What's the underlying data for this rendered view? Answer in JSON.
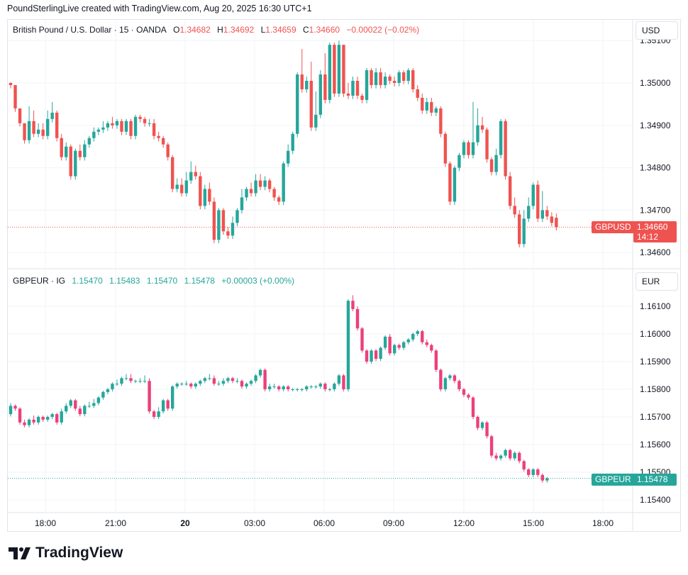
{
  "header": {
    "text": "PoundSterlingLive created with TradingView.com, Aug 20, 2025 16:30 UTC+1"
  },
  "panes": {
    "top": {
      "name": "British Pound / U.S. Dollar · 15 · OANDA",
      "o_label": "O",
      "o": "1.34682",
      "h_label": "H",
      "h": "1.34692",
      "l_label": "L",
      "l": "1.34659",
      "c_label": "C",
      "c": "1.34660",
      "change": "−0.00022 (−0.02%)",
      "currency": "USD",
      "symbol_tag": "GBPUSD",
      "price_tag": "1.34660",
      "countdown": "14:12",
      "tag_color": "#ef5350"
    },
    "bottom": {
      "name": "GBPEUR · IG",
      "o": "1.15470",
      "h": "1.15483",
      "l": "1.15470",
      "c": "1.15478",
      "change": "+0.00003 (+0.00%)",
      "currency": "EUR",
      "symbol_tag": "GBPEUR",
      "price_tag": "1.15478",
      "tag_color": "#26a69a"
    }
  },
  "logo": {
    "text": "TradingView"
  },
  "colors": {
    "up": "#26a69a",
    "down": "#ef5350",
    "down_bottom": "#ec407a",
    "grid": "#f0f3fa"
  },
  "chart_data": [
    {
      "type": "candlestick",
      "title": "British Pound / U.S. Dollar · 15 · OANDA",
      "x_ticks": [
        "18:00",
        "21:00",
        "20",
        "03:00",
        "06:00",
        "09:00",
        "12:00",
        "15:00",
        "18:00"
      ],
      "y_ticks": [
        "1.34600",
        "1.34700",
        "1.34800",
        "1.34900",
        "1.35000",
        "1.35100"
      ],
      "ylim": [
        1.3458,
        1.3511
      ],
      "last_price": 1.3466,
      "candles": [
        [
          1.35,
          1.34995,
          1.35002
        ],
        [
          1.34995,
          1.3494,
          1.34955
        ],
        [
          1.3494,
          1.34905,
          1.34935
        ],
        [
          1.34905,
          1.34865,
          1.34875
        ],
        [
          1.34865,
          1.3491,
          1.34945
        ],
        [
          1.3491,
          1.3488,
          1.34935
        ],
        [
          1.3488,
          1.3489,
          1.34905
        ],
        [
          1.3489,
          1.34875,
          1.34905
        ],
        [
          1.34875,
          1.34915,
          1.34935
        ],
        [
          1.34915,
          1.3493,
          1.34955
        ],
        [
          1.3493,
          1.3487,
          1.34935
        ],
        [
          1.3487,
          1.34825,
          1.3488
        ],
        [
          1.34825,
          1.3485,
          1.3486
        ],
        [
          1.3485,
          1.3478,
          1.34855
        ],
        [
          1.3478,
          1.3484,
          1.34845
        ],
        [
          1.3484,
          1.34825,
          1.34855
        ],
        [
          1.34825,
          1.34855,
          1.34865
        ],
        [
          1.34855,
          1.3487,
          1.34875
        ],
        [
          1.3487,
          1.34885,
          1.34895
        ],
        [
          1.34885,
          1.3489,
          1.34895
        ],
        [
          1.3489,
          1.34895,
          1.3491
        ],
        [
          1.34895,
          1.34905,
          1.3491
        ],
        [
          1.34905,
          1.349,
          1.3492
        ],
        [
          1.349,
          1.3491,
          1.34915
        ],
        [
          1.3491,
          1.34885,
          1.34915
        ],
        [
          1.34885,
          1.3491,
          1.34915
        ],
        [
          1.3491,
          1.34875,
          1.34915
        ],
        [
          1.34875,
          1.3492,
          1.34925
        ],
        [
          1.3492,
          1.34915,
          1.34925
        ],
        [
          1.34915,
          1.34905,
          1.3492
        ],
        [
          1.34905,
          1.34905,
          1.34915
        ],
        [
          1.34905,
          1.34875,
          1.34915
        ],
        [
          1.34875,
          1.3487,
          1.34885
        ],
        [
          1.3487,
          1.34855,
          1.34875
        ],
        [
          1.34855,
          1.34825,
          1.3486
        ],
        [
          1.34825,
          1.3475,
          1.3483
        ],
        [
          1.3475,
          1.3476,
          1.34775
        ],
        [
          1.3476,
          1.3474,
          1.34775
        ],
        [
          1.3474,
          1.3477,
          1.3479
        ],
        [
          1.3477,
          1.3479,
          1.34815
        ],
        [
          1.3479,
          1.3478,
          1.34805
        ],
        [
          1.3478,
          1.3471,
          1.3479
        ],
        [
          1.3471,
          1.3475,
          1.3476
        ],
        [
          1.3475,
          1.3472,
          1.34765
        ],
        [
          1.3472,
          1.3463,
          1.3473
        ],
        [
          1.3463,
          1.347,
          1.34705
        ],
        [
          1.347,
          1.3465,
          1.34705
        ],
        [
          1.3465,
          1.3464,
          1.3466
        ],
        [
          1.3464,
          1.3467,
          1.34685
        ],
        [
          1.3467,
          1.347,
          1.34705
        ],
        [
          1.347,
          1.3473,
          1.3475
        ],
        [
          1.3473,
          1.3475,
          1.34755
        ],
        [
          1.3475,
          1.3474,
          1.34765
        ],
        [
          1.3474,
          1.3477,
          1.34785
        ],
        [
          1.3477,
          1.34755,
          1.34785
        ],
        [
          1.34755,
          1.3477,
          1.3478
        ],
        [
          1.3477,
          1.3475,
          1.34775
        ],
        [
          1.3475,
          1.3473,
          1.34755
        ],
        [
          1.3473,
          1.3472,
          1.34735
        ],
        [
          1.3472,
          1.3481,
          1.34815
        ],
        [
          1.3481,
          1.3484,
          1.34855
        ],
        [
          1.3484,
          1.3488,
          1.34885
        ],
        [
          1.3488,
          1.3502,
          1.35025
        ],
        [
          1.3502,
          1.34985,
          1.3508
        ],
        [
          1.34985,
          1.35005,
          1.35015
        ],
        [
          1.35005,
          1.34895,
          1.3505
        ],
        [
          1.34895,
          1.34925,
          1.3498
        ],
        [
          1.34925,
          1.3502,
          1.3503
        ],
        [
          1.3502,
          1.3496,
          1.3507
        ],
        [
          1.3496,
          1.3509,
          1.35095
        ],
        [
          1.3509,
          1.34975,
          1.35095
        ],
        [
          1.34975,
          1.3509,
          1.351
        ],
        [
          1.3509,
          1.34975,
          1.3509
        ],
        [
          1.34975,
          1.3497,
          1.35
        ],
        [
          1.3497,
          1.35005,
          1.35015
        ],
        [
          1.35005,
          1.3497,
          1.35015
        ],
        [
          1.3497,
          1.3496,
          1.34975
        ],
        [
          1.3496,
          1.3503,
          1.35035
        ],
        [
          1.3503,
          1.34995,
          1.35035
        ],
        [
          1.34995,
          1.35025,
          1.35035
        ],
        [
          1.35025,
          1.34995,
          1.35035
        ],
        [
          1.34995,
          1.35015,
          1.35025
        ],
        [
          1.35015,
          1.35005,
          1.3502
        ],
        [
          1.35005,
          1.35,
          1.35015
        ],
        [
          1.35,
          1.35025,
          1.3503
        ],
        [
          1.35025,
          1.35005,
          1.3503
        ],
        [
          1.35005,
          1.3503,
          1.35035
        ],
        [
          1.3503,
          1.34985,
          1.35035
        ],
        [
          1.34985,
          1.34965,
          1.34995
        ],
        [
          1.34965,
          1.34935,
          1.34975
        ],
        [
          1.34935,
          1.34955,
          1.34965
        ],
        [
          1.34955,
          1.3493,
          1.34965
        ],
        [
          1.3493,
          1.3494,
          1.34945
        ],
        [
          1.3494,
          1.3488,
          1.34945
        ],
        [
          1.3488,
          1.3481,
          1.34885
        ],
        [
          1.3481,
          1.3472,
          1.34815
        ],
        [
          1.3472,
          1.348,
          1.34805
        ],
        [
          1.348,
          1.3483,
          1.34835
        ],
        [
          1.3483,
          1.3486,
          1.34865
        ],
        [
          1.3486,
          1.3483,
          1.34865
        ],
        [
          1.3483,
          1.3486,
          1.34955
        ],
        [
          1.3486,
          1.349,
          1.3494
        ],
        [
          1.349,
          1.3489,
          1.3492
        ],
        [
          1.3489,
          1.3482,
          1.34895
        ],
        [
          1.3482,
          1.3479,
          1.34825
        ],
        [
          1.3479,
          1.3483,
          1.34845
        ],
        [
          1.3483,
          1.3491,
          1.34915
        ],
        [
          1.3491,
          1.3478,
          1.34915
        ],
        [
          1.3478,
          1.3471,
          1.3479
        ],
        [
          1.3471,
          1.3469,
          1.3473
        ],
        [
          1.3469,
          1.3462,
          1.347
        ],
        [
          1.3462,
          1.3468,
          1.347
        ],
        [
          1.3468,
          1.3471,
          1.3473
        ],
        [
          1.3471,
          1.3476,
          1.34765
        ],
        [
          1.3476,
          1.3468,
          1.3477
        ],
        [
          1.3468,
          1.347,
          1.34745
        ],
        [
          1.347,
          1.34685,
          1.3471
        ],
        [
          1.34685,
          1.3467,
          1.34695
        ],
        [
          1.34682,
          1.3466,
          1.34692
        ]
      ]
    },
    {
      "type": "candlestick",
      "title": "GBPEUR · IG",
      "x_ticks": [
        "18:00",
        "21:00",
        "20",
        "03:00",
        "06:00",
        "09:00",
        "12:00",
        "15:00",
        "18:00"
      ],
      "y_ticks": [
        "1.15400",
        "1.15500",
        "1.15600",
        "1.15700",
        "1.15800",
        "1.15900",
        "1.16000",
        "1.16100"
      ],
      "ylim": [
        1.1536,
        1.1618
      ],
      "last_price": 1.15478,
      "candles": [
        [
          1.1571,
          1.1574,
          1.1575
        ],
        [
          1.1574,
          1.1573,
          1.15745
        ],
        [
          1.1573,
          1.1568,
          1.15735
        ],
        [
          1.1568,
          1.1567,
          1.1569
        ],
        [
          1.1567,
          1.1569,
          1.15695
        ],
        [
          1.1569,
          1.1568,
          1.15705
        ],
        [
          1.1568,
          1.157,
          1.15705
        ],
        [
          1.157,
          1.1569,
          1.15705
        ],
        [
          1.1569,
          1.157,
          1.15705
        ],
        [
          1.157,
          1.1571,
          1.15715
        ],
        [
          1.1571,
          1.1568,
          1.15715
        ],
        [
          1.1568,
          1.1572,
          1.1573
        ],
        [
          1.1572,
          1.1574,
          1.1575
        ],
        [
          1.1574,
          1.1576,
          1.15765
        ],
        [
          1.1576,
          1.1573,
          1.15765
        ],
        [
          1.1573,
          1.1571,
          1.1574
        ],
        [
          1.1571,
          1.1574,
          1.15745
        ],
        [
          1.1574,
          1.1574,
          1.15755
        ],
        [
          1.1574,
          1.1575,
          1.15765
        ],
        [
          1.1575,
          1.1577,
          1.15775
        ],
        [
          1.1577,
          1.1579,
          1.15795
        ],
        [
          1.1579,
          1.158,
          1.15805
        ],
        [
          1.158,
          1.1582,
          1.15825
        ],
        [
          1.1582,
          1.1582,
          1.15835
        ],
        [
          1.1582,
          1.1584,
          1.15845
        ],
        [
          1.1584,
          1.1584,
          1.15855
        ],
        [
          1.1584,
          1.1583,
          1.15855
        ],
        [
          1.1583,
          1.1583,
          1.15835
        ],
        [
          1.1583,
          1.1583,
          1.1584
        ],
        [
          1.1583,
          1.1583,
          1.1585
        ],
        [
          1.1583,
          1.1572,
          1.1584
        ],
        [
          1.1572,
          1.157,
          1.15725
        ],
        [
          1.157,
          1.1572,
          1.15735
        ],
        [
          1.1572,
          1.1576,
          1.15765
        ],
        [
          1.1576,
          1.1573,
          1.15765
        ],
        [
          1.1573,
          1.1581,
          1.15815
        ],
        [
          1.1581,
          1.1582,
          1.15825
        ],
        [
          1.1582,
          1.1582,
          1.15825
        ],
        [
          1.1582,
          1.1582,
          1.1583
        ],
        [
          1.1582,
          1.1581,
          1.15825
        ],
        [
          1.1581,
          1.1582,
          1.15825
        ],
        [
          1.1582,
          1.1583,
          1.15835
        ],
        [
          1.1583,
          1.1584,
          1.15845
        ],
        [
          1.1584,
          1.1584,
          1.15855
        ],
        [
          1.1584,
          1.1582,
          1.1585
        ],
        [
          1.1582,
          1.1582,
          1.1583
        ],
        [
          1.1582,
          1.1583,
          1.1584
        ],
        [
          1.1583,
          1.1584,
          1.15845
        ],
        [
          1.1584,
          1.1583,
          1.15845
        ],
        [
          1.1583,
          1.1583,
          1.1584
        ],
        [
          1.1583,
          1.1581,
          1.15835
        ],
        [
          1.1581,
          1.1582,
          1.15825
        ],
        [
          1.1582,
          1.1583,
          1.15835
        ],
        [
          1.1583,
          1.1585,
          1.15855
        ],
        [
          1.1585,
          1.1587,
          1.15875
        ],
        [
          1.1587,
          1.158,
          1.15875
        ],
        [
          1.158,
          1.1581,
          1.1582
        ],
        [
          1.1581,
          1.1581,
          1.1582
        ],
        [
          1.1581,
          1.158,
          1.15815
        ],
        [
          1.158,
          1.1581,
          1.15815
        ],
        [
          1.1581,
          1.158,
          1.15815
        ],
        [
          1.158,
          1.158,
          1.15805
        ],
        [
          1.158,
          1.158,
          1.15805
        ],
        [
          1.158,
          1.158,
          1.15805
        ],
        [
          1.158,
          1.1581,
          1.15815
        ],
        [
          1.1581,
          1.1581,
          1.15815
        ],
        [
          1.1581,
          1.1581,
          1.15815
        ],
        [
          1.1581,
          1.1582,
          1.15825
        ],
        [
          1.1582,
          1.158,
          1.15825
        ],
        [
          1.158,
          1.158,
          1.15805
        ],
        [
          1.158,
          1.1582,
          1.15825
        ],
        [
          1.1582,
          1.1585,
          1.15855
        ],
        [
          1.1585,
          1.158,
          1.15855
        ],
        [
          1.158,
          1.1612,
          1.16125
        ],
        [
          1.1612,
          1.1609,
          1.1614
        ],
        [
          1.1609,
          1.1602,
          1.161
        ],
        [
          1.1602,
          1.1594,
          1.16025
        ],
        [
          1.1594,
          1.159,
          1.15945
        ],
        [
          1.159,
          1.1594,
          1.15945
        ],
        [
          1.1594,
          1.1591,
          1.15945
        ],
        [
          1.1591,
          1.1595,
          1.15955
        ],
        [
          1.1595,
          1.1599,
          1.15995
        ],
        [
          1.1599,
          1.1593,
          1.16
        ],
        [
          1.1593,
          1.1596,
          1.15965
        ],
        [
          1.1596,
          1.1595,
          1.15965
        ],
        [
          1.1595,
          1.1597,
          1.15975
        ],
        [
          1.1597,
          1.1598,
          1.15985
        ],
        [
          1.1598,
          1.16,
          1.16005
        ],
        [
          1.16,
          1.1601,
          1.16015
        ],
        [
          1.1601,
          1.1597,
          1.16015
        ],
        [
          1.1597,
          1.1596,
          1.1598
        ],
        [
          1.1596,
          1.1594,
          1.15965
        ],
        [
          1.1594,
          1.1587,
          1.15945
        ],
        [
          1.1587,
          1.158,
          1.15875
        ],
        [
          1.158,
          1.1584,
          1.15845
        ],
        [
          1.1584,
          1.1585,
          1.15855
        ],
        [
          1.1585,
          1.1583,
          1.15855
        ],
        [
          1.1583,
          1.158,
          1.15835
        ],
        [
          1.158,
          1.1578,
          1.15805
        ],
        [
          1.1578,
          1.1577,
          1.15785
        ],
        [
          1.1577,
          1.157,
          1.15775
        ],
        [
          1.157,
          1.1566,
          1.15705
        ],
        [
          1.1566,
          1.1568,
          1.15685
        ],
        [
          1.1568,
          1.1563,
          1.15685
        ],
        [
          1.1563,
          1.1556,
          1.15635
        ],
        [
          1.1556,
          1.1555,
          1.1557
        ],
        [
          1.1555,
          1.1556,
          1.15565
        ],
        [
          1.1556,
          1.1558,
          1.15585
        ],
        [
          1.1558,
          1.1555,
          1.15585
        ],
        [
          1.1555,
          1.1557,
          1.15575
        ],
        [
          1.1557,
          1.1554,
          1.15575
        ],
        [
          1.1554,
          1.1551,
          1.15545
        ],
        [
          1.1551,
          1.1549,
          1.15515
        ],
        [
          1.1549,
          1.1551,
          1.15515
        ],
        [
          1.1551,
          1.1549,
          1.15515
        ],
        [
          1.1549,
          1.1547,
          1.15495
        ],
        [
          1.1547,
          1.15478,
          1.15483
        ]
      ]
    }
  ]
}
